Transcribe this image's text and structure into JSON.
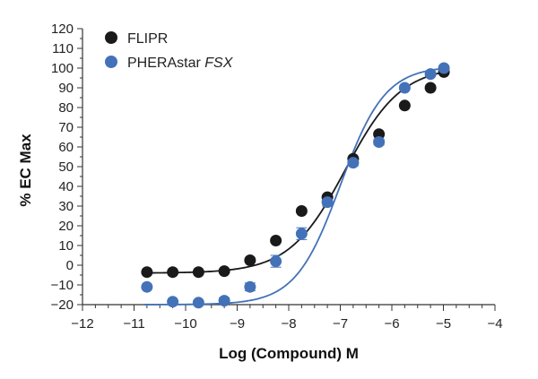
{
  "chart_data": {
    "type": "scatter",
    "xlabel": "Log (Compound) M",
    "ylabel": "% EC Max",
    "xlim": [
      -12,
      -4
    ],
    "ylim": [
      -20,
      120
    ],
    "xticks": [
      -12,
      -11,
      -10,
      -9,
      -8,
      -7,
      -6,
      -5,
      -4
    ],
    "yticks": [
      -20,
      -10,
      0,
      10,
      20,
      30,
      40,
      50,
      60,
      70,
      80,
      90,
      100,
      110,
      120
    ],
    "grid": false,
    "legend_position": "top-left",
    "series": [
      {
        "name": "FLIPR",
        "name_plain": "FLIPR",
        "name_italic": "",
        "color": "#1a1a1a",
        "x": [
          -10.75,
          -10.25,
          -9.75,
          -9.25,
          -8.75,
          -8.25,
          -7.75,
          -7.25,
          -6.75,
          -6.25,
          -5.75,
          -5.25,
          -4.99
        ],
        "y": [
          -3.5,
          -3.5,
          -3.5,
          -3,
          2.5,
          12.5,
          27.5,
          34.5,
          54,
          66.5,
          81,
          90,
          98
        ],
        "err": [
          0,
          0,
          0,
          0,
          0,
          0,
          0,
          0,
          0,
          0,
          0,
          0,
          0
        ],
        "curve": {
          "bottom": -4,
          "top": 101,
          "logec50": -6.9,
          "hill": 0.8
        }
      },
      {
        "name": "PHERAstar FSX",
        "name_plain": "PHERAstar ",
        "name_italic": "FSX",
        "color": "#4472b8",
        "x": [
          -10.75,
          -10.25,
          -9.75,
          -9.25,
          -8.75,
          -8.25,
          -7.75,
          -7.25,
          -6.75,
          -6.25,
          -5.75,
          -5.25,
          -4.99
        ],
        "y": [
          -11,
          -18.5,
          -19,
          -18,
          -11,
          2,
          16,
          32,
          52,
          62.5,
          90,
          97,
          100
        ],
        "err": [
          0,
          0,
          0,
          1.5,
          2,
          3,
          3,
          2,
          1.5,
          1.5,
          0,
          0,
          0
        ],
        "curve": {
          "bottom": -20,
          "top": 101,
          "logec50": -7.0,
          "hill": 1.0
        }
      }
    ]
  }
}
